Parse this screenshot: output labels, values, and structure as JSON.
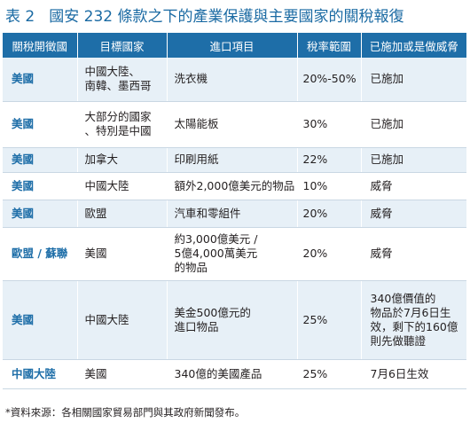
{
  "title": {
    "number": "表 2",
    "text": "國安 232 條款之下的產業保護與主要國家的關稅報復"
  },
  "columns": [
    "關稅開徵國",
    "目標國家",
    "進口項目",
    "稅率範圍",
    "已施加或是做威脅"
  ],
  "rows": [
    {
      "country": "美國",
      "target": "中國大陸、\n南韓、墨西哥",
      "item": "洗衣機",
      "rate": "20%-50%",
      "status": "已施加"
    },
    {
      "country": "美國",
      "target": "大部分的國家\n、特別是中國",
      "item": "太陽能板",
      "rate": "30%",
      "status": "已施加"
    },
    {
      "country": "美國",
      "target": "加拿大",
      "item": "印刷用紙",
      "rate": "22%",
      "status": "已施加"
    },
    {
      "country": "美國",
      "target": "中國大陸",
      "item": "額外2,000億美元的物品",
      "rate": "10%",
      "status": "威脅"
    },
    {
      "country": "美國",
      "target": "歐盟",
      "item": "汽車和零組件",
      "rate": "20%",
      "status": "威脅"
    },
    {
      "country": "歐盟 / 蘇聯",
      "target": "美國",
      "item": "約3,000億美元 /\n5億4,000萬美元\n的物品",
      "rate": "20%",
      "status": "威脅"
    },
    {
      "country": "美國",
      "target": "中國大陸",
      "item": "美金500億元的\n進口物品",
      "rate": "25%",
      "status": "340億價值的\n物品於7月6日生\n效，剩下的160億\n則先做聽證"
    },
    {
      "country": "中國大陸",
      "target": "美國",
      "item": "340億的美國產品",
      "rate": "25%",
      "status": "7月6日生效"
    }
  ],
  "footnote": "*資料來源：各相關國家貿易部門與其政府新聞發布。",
  "colors": {
    "header_bg": "#1e6ea8",
    "row_alt_bg": "#e7f0f7",
    "title": "#1a6aa3",
    "country_text": "#1e6ea8"
  }
}
